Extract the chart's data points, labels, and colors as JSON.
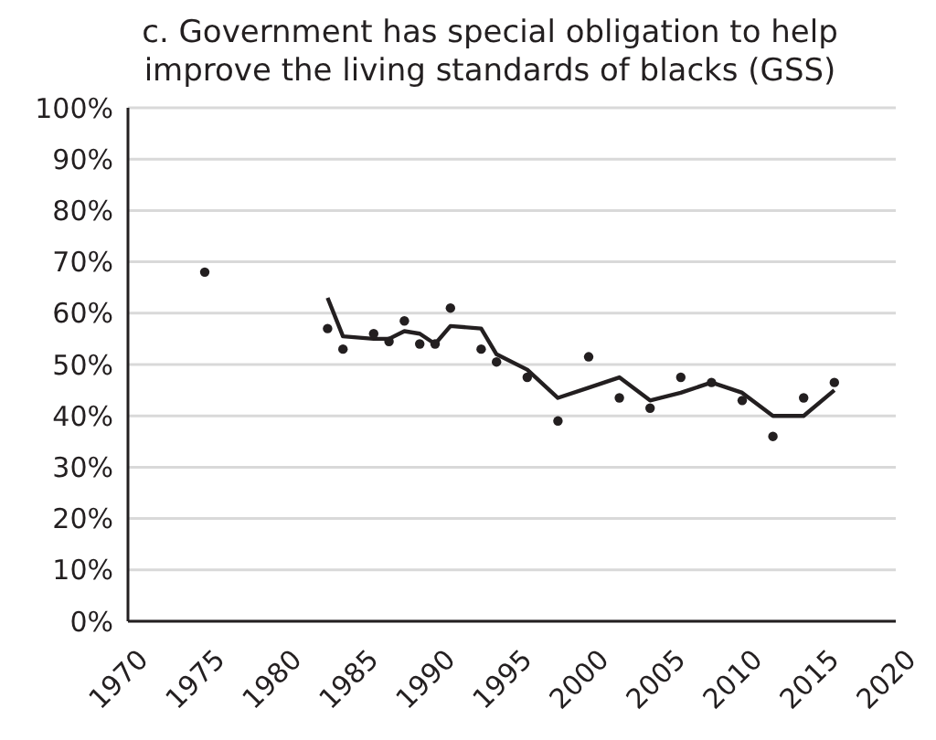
{
  "chart_data": {
    "type": "scatter",
    "title": "c. Government has special obligation to help improve the living standards of blacks (GSS)",
    "xlim": [
      1970,
      2020
    ],
    "xticks": [
      1970,
      1975,
      1980,
      1985,
      1990,
      1995,
      2000,
      2005,
      2010,
      2015,
      2020
    ],
    "ylim": [
      0,
      100
    ],
    "yticks": [
      {
        "value": 0,
        "label": "0%"
      },
      {
        "value": 10,
        "label": "10%"
      },
      {
        "value": 20,
        "label": "20%"
      },
      {
        "value": 30,
        "label": "30%"
      },
      {
        "value": 40,
        "label": "40%"
      },
      {
        "value": 50,
        "label": "50%"
      },
      {
        "value": 60,
        "label": "60%"
      },
      {
        "value": 70,
        "label": "70%"
      },
      {
        "value": 80,
        "label": "80%"
      },
      {
        "value": 90,
        "label": "90%"
      },
      {
        "value": 100,
        "label": "100%"
      }
    ],
    "grid": "y",
    "marker": "circle",
    "series": [
      {
        "color": "#231f20",
        "x": [
          1975,
          1983,
          1984,
          1986,
          1987,
          1988,
          1989,
          1990,
          1991,
          1993,
          1994,
          1996,
          1998,
          2000,
          2002,
          2004,
          2006,
          2008,
          2010,
          2012,
          2014,
          2016
        ],
        "values": [
          68,
          57,
          53,
          56,
          54.5,
          58.5,
          54,
          54,
          61,
          53,
          50.5,
          47.5,
          39,
          51.5,
          43.5,
          41.5,
          47.5,
          46.5,
          43,
          36,
          43.5,
          46.5
        ]
      },
      {
        "type": "line",
        "color": "#231f20",
        "marker": "none",
        "line_style": "solid",
        "x": [
          1983,
          1984,
          1986,
          1987,
          1988,
          1989,
          1990,
          1991,
          1993,
          1994,
          1996,
          1998,
          2000,
          2002,
          2004,
          2006,
          2008,
          2010,
          2012,
          2014,
          2016
        ],
        "values": [
          63,
          55.5,
          55,
          55,
          56.5,
          56,
          54,
          57.5,
          57,
          52,
          49,
          43.5,
          45.5,
          47.5,
          43,
          44.5,
          46.5,
          44.5,
          40,
          40,
          45
        ]
      }
    ]
  }
}
